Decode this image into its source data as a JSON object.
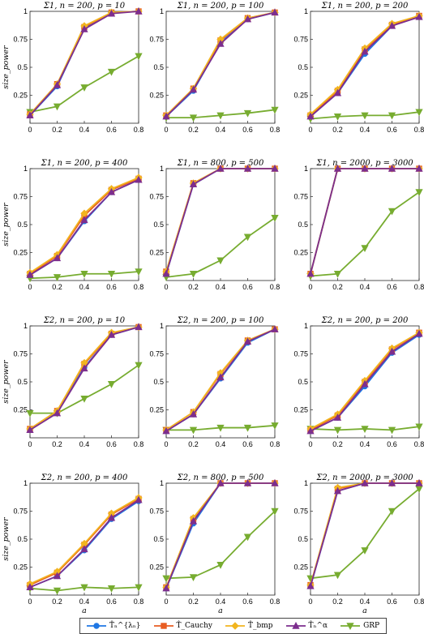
{
  "chart_data": {
    "type": "line",
    "x": [
      0,
      0.2,
      0.4,
      0.6,
      0.8
    ],
    "xticks": [
      "0",
      "0.2",
      "0.4",
      "0.6",
      "0.8"
    ],
    "xlabel": "a",
    "ylabel": "size_power",
    "ylim": [
      0,
      1
    ],
    "yticks": [
      "0.25",
      "0.5",
      "0.75",
      "1"
    ],
    "grid": false,
    "legend_position": "bottom",
    "series_meta": [
      {
        "name": "T̂ₙ^{λ_n}",
        "color": "#1f77e4",
        "marker": "circle"
      },
      {
        "name": "T̂_Cauchy",
        "color": "#e85d22",
        "marker": "square"
      },
      {
        "name": "T̂_bmp",
        "color": "#f2b51f",
        "marker": "diamond"
      },
      {
        "name": "T̂ₙ^α",
        "color": "#7d2e8e",
        "marker": "triangle-up"
      },
      {
        "name": "GRP",
        "color": "#77ac30",
        "marker": "triangle-down"
      }
    ],
    "panels": [
      {
        "title": "Σ1, n = 200, p = 10",
        "series": [
          [
            0.07,
            0.33,
            0.85,
            0.99,
            1.0
          ],
          [
            0.08,
            0.35,
            0.86,
            0.99,
            1.0
          ],
          [
            0.08,
            0.35,
            0.87,
            0.99,
            1.0
          ],
          [
            0.07,
            0.34,
            0.84,
            0.98,
            1.0
          ],
          [
            0.1,
            0.15,
            0.32,
            0.46,
            0.6
          ]
        ]
      },
      {
        "title": "Σ1, n = 200, p = 100",
        "series": [
          [
            0.06,
            0.29,
            0.72,
            0.93,
            0.99
          ],
          [
            0.07,
            0.31,
            0.74,
            0.94,
            0.99
          ],
          [
            0.07,
            0.31,
            0.75,
            0.94,
            0.99
          ],
          [
            0.06,
            0.3,
            0.71,
            0.93,
            0.99
          ],
          [
            0.05,
            0.05,
            0.07,
            0.09,
            0.12
          ]
        ]
      },
      {
        "title": "Σ1, n = 200, p = 200",
        "series": [
          [
            0.06,
            0.27,
            0.62,
            0.87,
            0.96
          ],
          [
            0.07,
            0.29,
            0.66,
            0.88,
            0.96
          ],
          [
            0.08,
            0.3,
            0.67,
            0.89,
            0.96
          ],
          [
            0.06,
            0.27,
            0.64,
            0.87,
            0.95
          ],
          [
            0.04,
            0.06,
            0.07,
            0.07,
            0.1
          ]
        ]
      },
      {
        "title": "Σ1, n = 200, p = 400",
        "series": [
          [
            0.05,
            0.2,
            0.53,
            0.79,
            0.9
          ],
          [
            0.06,
            0.22,
            0.58,
            0.81,
            0.91
          ],
          [
            0.07,
            0.23,
            0.6,
            0.82,
            0.92
          ],
          [
            0.05,
            0.2,
            0.54,
            0.79,
            0.9
          ],
          [
            0.02,
            0.03,
            0.06,
            0.06,
            0.08
          ]
        ]
      },
      {
        "title": "Σ1, n = 800, p = 500",
        "series": [
          [
            0.06,
            0.86,
            1.0,
            1.0,
            1.0
          ],
          [
            0.08,
            0.87,
            1.0,
            1.0,
            1.0
          ],
          [
            0.08,
            0.87,
            1.0,
            1.0,
            1.0
          ],
          [
            0.06,
            0.86,
            1.0,
            1.0,
            1.0
          ],
          [
            0.03,
            0.06,
            0.18,
            0.39,
            0.56
          ]
        ]
      },
      {
        "title": "Σ1, n = 2000, p = 3000",
        "series": [
          [
            0.06,
            1.0,
            1.0,
            1.0,
            1.0
          ],
          [
            0.06,
            1.0,
            1.0,
            1.0,
            1.0
          ],
          [
            0.06,
            1.0,
            1.0,
            1.0,
            1.0
          ],
          [
            0.06,
            1.0,
            1.0,
            1.0,
            1.0
          ],
          [
            0.04,
            0.06,
            0.29,
            0.62,
            0.79
          ]
        ]
      },
      {
        "title": "Σ2, n = 200, p = 10",
        "series": [
          [
            0.07,
            0.23,
            0.63,
            0.92,
            0.99
          ],
          [
            0.08,
            0.24,
            0.66,
            0.93,
            0.99
          ],
          [
            0.08,
            0.24,
            0.67,
            0.94,
            0.99
          ],
          [
            0.07,
            0.22,
            0.62,
            0.92,
            0.99
          ],
          [
            0.22,
            0.22,
            0.35,
            0.48,
            0.65
          ]
        ]
      },
      {
        "title": "Σ2, n = 200, p = 100",
        "series": [
          [
            0.06,
            0.21,
            0.53,
            0.85,
            0.97
          ],
          [
            0.07,
            0.23,
            0.57,
            0.87,
            0.97
          ],
          [
            0.07,
            0.23,
            0.58,
            0.87,
            0.97
          ],
          [
            0.06,
            0.21,
            0.54,
            0.86,
            0.97
          ],
          [
            0.07,
            0.07,
            0.09,
            0.09,
            0.11
          ]
        ]
      },
      {
        "title": "Σ2, n = 200, p = 200",
        "series": [
          [
            0.06,
            0.18,
            0.46,
            0.76,
            0.92
          ],
          [
            0.07,
            0.2,
            0.5,
            0.79,
            0.94
          ],
          [
            0.08,
            0.21,
            0.51,
            0.8,
            0.94
          ],
          [
            0.06,
            0.18,
            0.48,
            0.77,
            0.93
          ],
          [
            0.08,
            0.07,
            0.08,
            0.07,
            0.1
          ]
        ]
      },
      {
        "title": "Σ2, n = 200, p = 400",
        "series": [
          [
            0.07,
            0.17,
            0.4,
            0.68,
            0.84
          ],
          [
            0.09,
            0.2,
            0.45,
            0.72,
            0.86
          ],
          [
            0.1,
            0.21,
            0.46,
            0.73,
            0.87
          ],
          [
            0.07,
            0.17,
            0.41,
            0.69,
            0.85
          ],
          [
            0.06,
            0.04,
            0.07,
            0.06,
            0.07
          ]
        ]
      },
      {
        "title": "Σ2, n = 800, p = 500",
        "series": [
          [
            0.06,
            0.64,
            1.0,
            1.0,
            1.0
          ],
          [
            0.07,
            0.68,
            1.0,
            1.0,
            1.0
          ],
          [
            0.07,
            0.69,
            1.0,
            1.0,
            1.0
          ],
          [
            0.06,
            0.66,
            1.0,
            1.0,
            1.0
          ],
          [
            0.15,
            0.16,
            0.27,
            0.52,
            0.75
          ]
        ]
      },
      {
        "title": "Σ2, n = 2000, p = 3000",
        "series": [
          [
            0.08,
            0.93,
            1.0,
            1.0,
            1.0
          ],
          [
            0.09,
            0.95,
            1.0,
            1.0,
            1.0
          ],
          [
            0.09,
            0.96,
            1.0,
            1.0,
            1.0
          ],
          [
            0.08,
            0.93,
            1.0,
            1.0,
            1.0
          ],
          [
            0.15,
            0.18,
            0.4,
            0.75,
            0.95
          ]
        ]
      }
    ]
  },
  "legend": {
    "items": [
      {
        "label": "T̂ₙ^{λₙ}",
        "color": "#1f77e4",
        "marker": "circle"
      },
      {
        "label": "T̂_Cauchy",
        "color": "#e85d22",
        "marker": "square"
      },
      {
        "label": "T̂_bmp",
        "color": "#f2b51f",
        "marker": "diamond"
      },
      {
        "label": "T̂ₙ^α",
        "color": "#7d2e8e",
        "marker": "triangle-up"
      },
      {
        "label": "GRP",
        "color": "#77ac30",
        "marker": "triangle-down"
      }
    ]
  }
}
